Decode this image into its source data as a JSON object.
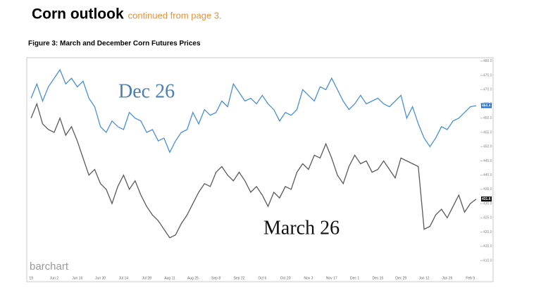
{
  "header": {
    "title": "Corn outlook",
    "subtitle": "continued from page 3."
  },
  "chart_data": {
    "type": "line",
    "title": "Figure 3: March and December Corn Futures Prices",
    "watermark": "barchart",
    "annotations": [
      "Dec 26",
      "March 26"
    ],
    "categories": [
      "19",
      null,
      null,
      null,
      "Jun 2",
      null,
      null,
      null,
      "Jun 16",
      null,
      null,
      null,
      "Jun 30",
      null,
      null,
      null,
      "Jul 14",
      null,
      null,
      null,
      "Jul 28",
      null,
      null,
      null,
      "Aug 11",
      null,
      null,
      null,
      "Aug 25",
      null,
      null,
      null,
      "Sep 8",
      null,
      null,
      null,
      "Sep 22",
      null,
      null,
      null,
      "Oct 6",
      null,
      null,
      null,
      "Oct 20",
      null,
      null,
      null,
      "Nov 3",
      null,
      null,
      null,
      "Nov 17",
      null,
      null,
      null,
      "Dec 1",
      null,
      null,
      null,
      "Dec 15",
      null,
      null,
      null,
      "Dec 29",
      null,
      null,
      null,
      "Jan 12",
      null,
      null,
      null,
      "Jan 26",
      null,
      null,
      null,
      "Feb 9",
      null
    ],
    "series": [
      {
        "name": "Dec 26",
        "color": "#4a8fd6",
        "label_color": "#1f6fcc",
        "values": [
          467,
          472,
          466,
          471,
          474,
          477,
          472,
          474,
          471,
          473,
          467,
          464,
          457,
          455,
          459,
          457,
          456,
          462,
          460,
          459,
          455,
          456,
          452,
          453,
          448,
          452,
          455,
          456,
          462,
          458,
          463,
          461,
          462,
          466,
          464,
          472,
          469,
          466,
          467,
          465,
          468,
          465,
          463,
          459,
          462,
          461,
          463,
          470,
          468,
          466,
          471,
          470,
          474,
          470,
          466,
          463,
          465,
          468,
          465,
          466,
          467,
          465,
          464,
          466,
          468,
          460,
          464,
          458,
          453,
          450,
          453,
          457,
          456,
          459,
          460,
          462,
          464,
          464.4
        ]
      },
      {
        "name": "March 26",
        "color": "#5a5a5a",
        "label_color": "#000000",
        "values": [
          460,
          465,
          458,
          456,
          455,
          460,
          454,
          457,
          452,
          446,
          440,
          442,
          437,
          435,
          430,
          436,
          440,
          435,
          438,
          433,
          429,
          426,
          424,
          421,
          418,
          419,
          423,
          426,
          430,
          434,
          437,
          436,
          441,
          443,
          440,
          438,
          441,
          438,
          434,
          436,
          433,
          429,
          434,
          432,
          436,
          435,
          441,
          444,
          442,
          447,
          446,
          451,
          446,
          440,
          437,
          443,
          447,
          444,
          445,
          441,
          442,
          445,
          442,
          439,
          446,
          445,
          444,
          443,
          421,
          422,
          426,
          428,
          425,
          429,
          433,
          427,
          430,
          431.6
        ]
      }
    ],
    "ylim": [
      402.6,
      481.2
    ],
    "yticks": [
      {
        "value": 480,
        "label": "480.0"
      },
      {
        "value": 475,
        "label": "475.0"
      },
      {
        "value": 470,
        "label": "470.0"
      },
      {
        "value": 465,
        "label": "465.0"
      },
      {
        "value": 460,
        "label": "460.0"
      },
      {
        "value": 455,
        "label": "455.0"
      },
      {
        "value": 450,
        "label": "450.0"
      },
      {
        "value": 445,
        "label": "445.0"
      },
      {
        "value": 440,
        "label": "440.0"
      },
      {
        "value": 435,
        "label": "435.0"
      },
      {
        "value": 430,
        "label": "430.0"
      },
      {
        "value": 425,
        "label": "425.0"
      },
      {
        "value": 420,
        "label": "420.0"
      },
      {
        "value": 415,
        "label": "415.0"
      },
      {
        "value": 410,
        "label": "410.0"
      }
    ],
    "grid": false
  }
}
